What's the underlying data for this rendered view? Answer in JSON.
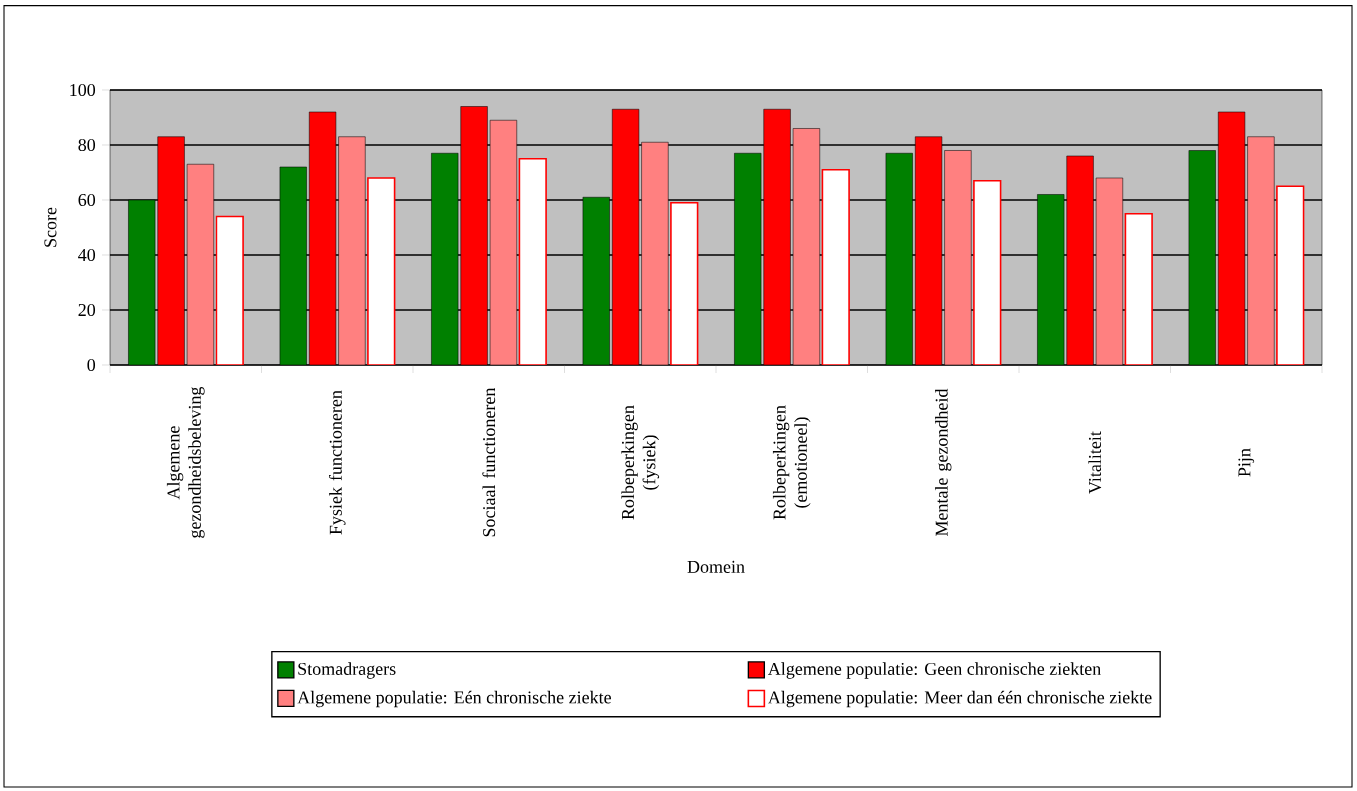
{
  "chart_data": {
    "type": "bar",
    "xlabel": "Domein",
    "ylabel": "Score",
    "categories": [
      "Algemene gezondheidsbeleving",
      "Fysiek functioneren",
      "Sociaal functioneren",
      "Rolbeperkingen (fysiek)",
      "Rolbeperkingen (emotioneel)",
      "Mentale gezondheid",
      "Vitaliteit",
      "Pijn"
    ],
    "series": [
      {
        "name": "Stomadragers",
        "color": "#008000",
        "values": [
          60,
          72,
          77,
          61,
          77,
          77,
          62,
          78
        ]
      },
      {
        "name": "Algemene populatie: Geen chronische ziekten",
        "color": "#ff0000",
        "values": [
          83,
          92,
          94,
          93,
          93,
          83,
          76,
          92
        ]
      },
      {
        "name": "Algemene populatie: Eén chronische ziekte",
        "color": "#ff8080",
        "values": [
          73,
          83,
          89,
          81,
          86,
          78,
          68,
          83
        ]
      },
      {
        "name": "Algemene populatie: Meer dan één chronische ziekte",
        "color": "#ffffff",
        "values": [
          54,
          68,
          75,
          59,
          71,
          67,
          55,
          65
        ]
      }
    ],
    "ylim": [
      0,
      100
    ],
    "yticks": [
      0,
      20,
      40,
      60,
      80,
      100
    ],
    "grid": "y",
    "legend": "bottom"
  }
}
